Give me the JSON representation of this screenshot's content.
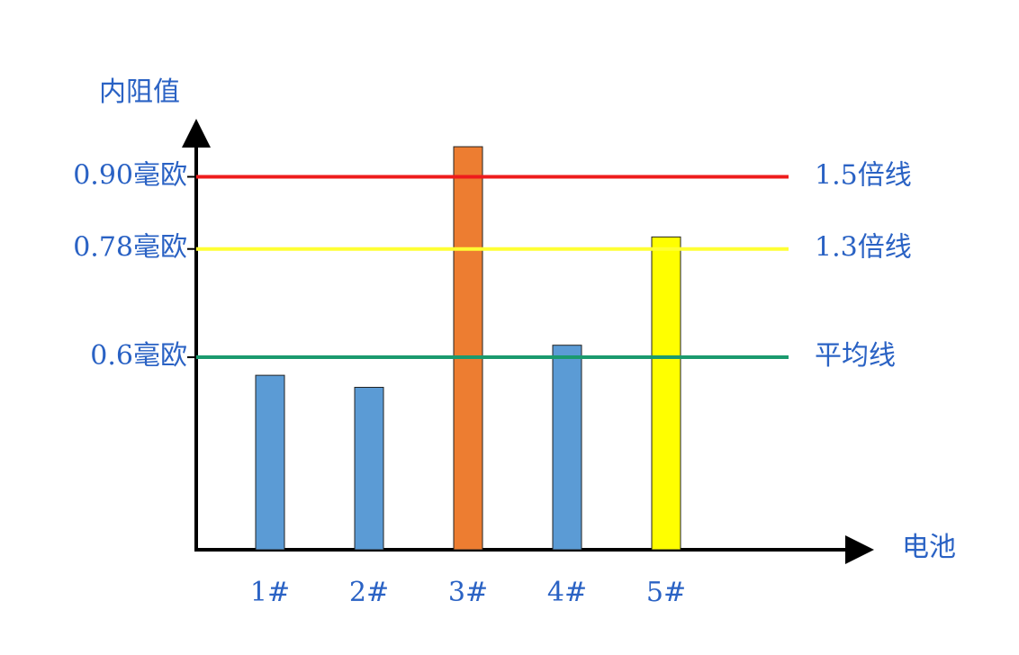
{
  "chart_data": {
    "type": "bar",
    "y_label": "内阻值",
    "x_label": "电池",
    "categories": [
      "1#",
      "2#",
      "3#",
      "4#",
      "5#"
    ],
    "values": [
      0.57,
      0.55,
      0.95,
      0.62,
      0.8
    ],
    "colors": [
      "#5b9bd5",
      "#5b9bd5",
      "#ed7d31",
      "#5b9bd5",
      "#ffff00"
    ],
    "ylim": [
      0.28,
      0.98
    ],
    "yticks": [
      {
        "value": 0.6,
        "label": "0.6毫欧"
      },
      {
        "value": 0.78,
        "label": "0.78毫欧"
      },
      {
        "value": 0.9,
        "label": "0.90毫欧"
      }
    ],
    "reference_lines": [
      {
        "value": 0.9,
        "label": "1.5倍线",
        "color": "#ee1c1c"
      },
      {
        "value": 0.78,
        "label": "1.3倍线",
        "color": "#ffff33"
      },
      {
        "value": 0.6,
        "label": "平均线",
        "color": "#1a9a6e"
      }
    ],
    "grid": false
  }
}
